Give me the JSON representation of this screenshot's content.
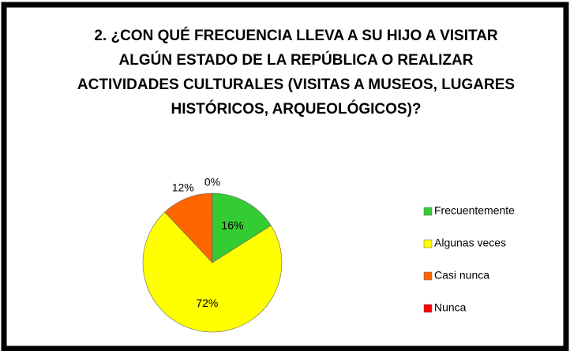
{
  "chart_data": {
    "type": "pie",
    "title": "2. ¿CON QUÉ FRECUENCIA LLEVA A SU HIJO A VISITAR ALGÚN ESTADO DE LA REPÚBLICA O REALIZAR ACTIVIDADES CULTURALES (VISITAS A MUSEOS, LUGARES HISTÓRICOS, ARQUEOLÓGICOS)?",
    "categories": [
      "Frecuentemente",
      "Algunas veces",
      "Casi nunca",
      "Nunca"
    ],
    "values": [
      16,
      72,
      12,
      0
    ],
    "value_labels": [
      "16%",
      "72%",
      "12%",
      "0%"
    ],
    "colors": [
      "#33cc33",
      "#ffff00",
      "#ff6600",
      "#ff0000"
    ],
    "legend": "right"
  }
}
